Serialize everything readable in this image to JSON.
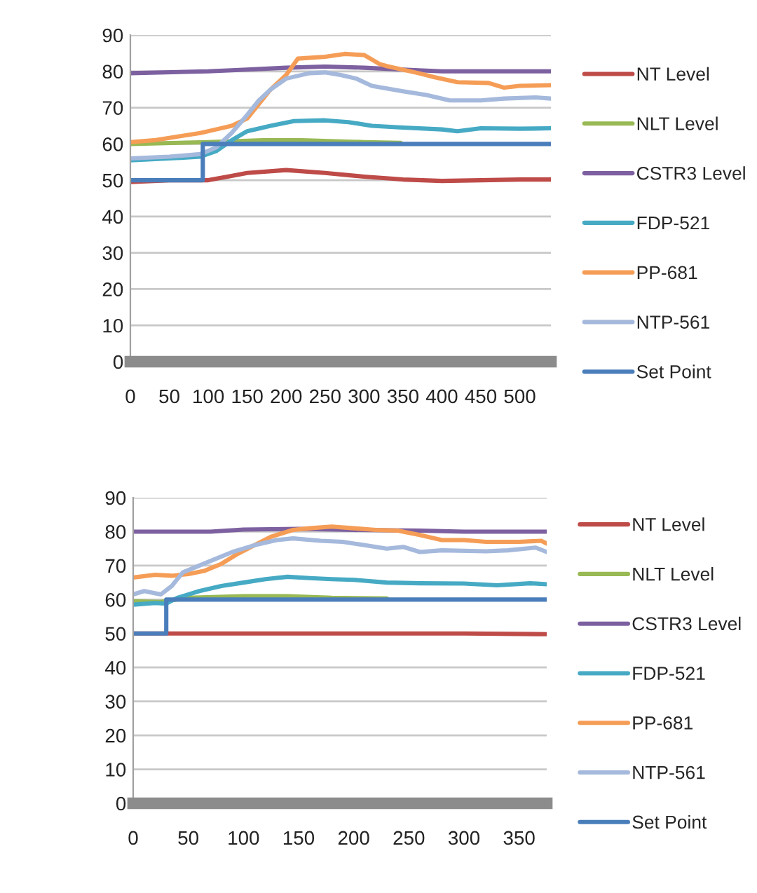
{
  "chart_data": [
    {
      "type": "line",
      "xlim": [
        0,
        540
      ],
      "ylim": [
        0,
        90
      ],
      "xticks": [
        0,
        50,
        100,
        150,
        200,
        250,
        300,
        350,
        400,
        450,
        500
      ],
      "yticks": [
        0,
        10,
        20,
        30,
        40,
        50,
        60,
        70,
        80,
        90
      ],
      "grid": "y",
      "legend": "right",
      "series": [
        {
          "name": "NT Level",
          "color": "#be4b48",
          "x": [
            0,
            50,
            100,
            125,
            150,
            200,
            250,
            300,
            350,
            400,
            450,
            500,
            540
          ],
          "values": [
            49.5,
            50,
            50,
            51,
            52,
            52.8,
            52,
            51,
            50.2,
            49.8,
            50,
            50.2,
            50.2
          ]
        },
        {
          "name": "NLT Level",
          "color": "#98b954",
          "x": [
            0,
            100,
            170,
            220,
            300,
            347
          ],
          "values": [
            60,
            60.5,
            61,
            61,
            60.5,
            60.3
          ]
        },
        {
          "name": "CSTR3 Level",
          "color": "#7d60a0",
          "x": [
            0,
            100,
            150,
            200,
            250,
            300,
            350,
            400,
            540
          ],
          "values": [
            79.5,
            80,
            80.5,
            81,
            81.3,
            81,
            80.5,
            80,
            80
          ]
        },
        {
          "name": "FDP-521",
          "color": "#46aac4",
          "x": [
            0,
            50,
            90,
            110,
            130,
            150,
            180,
            210,
            250,
            280,
            310,
            350,
            400,
            420,
            450,
            500,
            540
          ],
          "values": [
            55.5,
            56,
            56.5,
            58,
            61,
            63.5,
            65,
            66.3,
            66.5,
            66,
            65,
            64.5,
            64,
            63.5,
            64.3,
            64.2,
            64.3
          ]
        },
        {
          "name": "PP-681",
          "color": "#f59d56",
          "x": [
            0,
            30,
            60,
            90,
            110,
            130,
            150,
            165,
            180,
            200,
            215,
            250,
            275,
            300,
            320,
            330,
            370,
            390,
            420,
            460,
            480,
            500,
            540
          ],
          "values": [
            60.5,
            61,
            62,
            63,
            64,
            65,
            67,
            71,
            75,
            79,
            83.5,
            84,
            84.8,
            84.5,
            82,
            81.4,
            79.5,
            78.4,
            77,
            76.8,
            75.5,
            76,
            76.2
          ]
        },
        {
          "name": "NTP-561",
          "color": "#a5b9dc",
          "x": [
            0,
            50,
            90,
            110,
            130,
            150,
            165,
            180,
            200,
            230,
            250,
            270,
            290,
            310,
            350,
            380,
            410,
            450,
            480,
            520,
            540
          ],
          "values": [
            56,
            56.5,
            57.2,
            59,
            63,
            68,
            72,
            75,
            78,
            79.5,
            79.7,
            79,
            78,
            76,
            74.5,
            73.5,
            72,
            72,
            72.5,
            72.8,
            72.5
          ]
        },
        {
          "name": "Set Point",
          "color": "#4a7ebb",
          "x": [
            0,
            93,
            93,
            540
          ],
          "values": [
            50,
            50,
            60,
            60
          ]
        }
      ]
    },
    {
      "type": "line",
      "xlim": [
        0,
        375
      ],
      "ylim": [
        0,
        90
      ],
      "xticks": [
        0,
        50,
        100,
        150,
        200,
        250,
        300,
        350
      ],
      "yticks": [
        0,
        10,
        20,
        30,
        40,
        50,
        60,
        70,
        80,
        90
      ],
      "grid": "y",
      "legend": "right",
      "series": [
        {
          "name": "NT Level",
          "color": "#be4b48",
          "x": [
            0,
            100,
            200,
            300,
            375
          ],
          "values": [
            50,
            50,
            50,
            50,
            49.8
          ]
        },
        {
          "name": "NLT Level",
          "color": "#98b954",
          "x": [
            0,
            25,
            50,
            100,
            140,
            180,
            230
          ],
          "values": [
            59.5,
            59.3,
            60.5,
            61,
            61,
            60.5,
            60.3
          ]
        },
        {
          "name": "CSTR3 Level",
          "color": "#7d60a0",
          "x": [
            0,
            70,
            100,
            150,
            200,
            260,
            300,
            375
          ],
          "values": [
            80,
            80,
            80.6,
            80.8,
            80.5,
            80.3,
            80,
            80
          ]
        },
        {
          "name": "FDP-521",
          "color": "#46aac4",
          "x": [
            0,
            20,
            30,
            40,
            60,
            80,
            100,
            120,
            140,
            160,
            180,
            200,
            230,
            260,
            300,
            330,
            360,
            375
          ],
          "values": [
            58.5,
            59,
            58.8,
            60.5,
            62.5,
            64,
            65,
            66,
            66.7,
            66.3,
            66,
            65.8,
            65,
            64.8,
            64.7,
            64.2,
            64.8,
            64.5
          ]
        },
        {
          "name": "PP-681",
          "color": "#f59d56",
          "x": [
            0,
            20,
            35,
            50,
            65,
            80,
            95,
            110,
            125,
            145,
            160,
            180,
            200,
            220,
            240,
            260,
            280,
            300,
            320,
            350,
            370,
            375
          ],
          "values": [
            66.5,
            67.3,
            67,
            67.5,
            68.5,
            70.5,
            73.5,
            76,
            78.5,
            80.5,
            81,
            81.5,
            81,
            80.5,
            80.3,
            79,
            77.5,
            77.5,
            77,
            77,
            77.3,
            76.5
          ]
        },
        {
          "name": "NTP-561",
          "color": "#a5b9dc",
          "x": [
            0,
            10,
            25,
            35,
            45,
            60,
            75,
            90,
            110,
            130,
            145,
            170,
            190,
            210,
            230,
            245,
            260,
            280,
            320,
            340,
            365,
            375
          ],
          "values": [
            61.5,
            62.5,
            61.5,
            64,
            68,
            70,
            72,
            74,
            76,
            77.5,
            78,
            77.3,
            77,
            76,
            75,
            75.5,
            74,
            74.5,
            74.2,
            74.5,
            75.3,
            74
          ]
        },
        {
          "name": "Set Point",
          "color": "#4a7ebb",
          "x": [
            0,
            30,
            30,
            375
          ],
          "values": [
            50,
            50,
            60,
            60
          ]
        }
      ]
    }
  ]
}
